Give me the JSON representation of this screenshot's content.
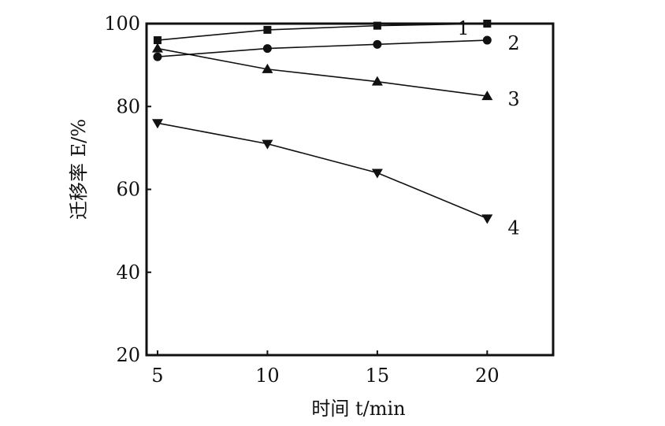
{
  "chart_data": {
    "type": "line",
    "title": "",
    "xlabel": "时间 t/min",
    "ylabel": "迁移率 E/%",
    "xlim": [
      4.5,
      23
    ],
    "ylim": [
      20,
      100
    ],
    "xticks": [
      5,
      10,
      15,
      20
    ],
    "yticks": [
      20,
      40,
      60,
      80,
      100
    ],
    "grid": false,
    "legend": "inline labels at line ends",
    "x": [
      5,
      10,
      15,
      20
    ],
    "series": [
      {
        "name": "1",
        "marker": "square",
        "values": [
          96,
          98.5,
          99.5,
          100
        ]
      },
      {
        "name": "2",
        "marker": "circle",
        "values": [
          92,
          94,
          95,
          96
        ]
      },
      {
        "name": "3",
        "marker": "triangle-up",
        "values": [
          94,
          89,
          86,
          82.5
        ]
      },
      {
        "name": "4",
        "marker": "triangle-down",
        "values": [
          76,
          71,
          64,
          53
        ]
      }
    ]
  }
}
